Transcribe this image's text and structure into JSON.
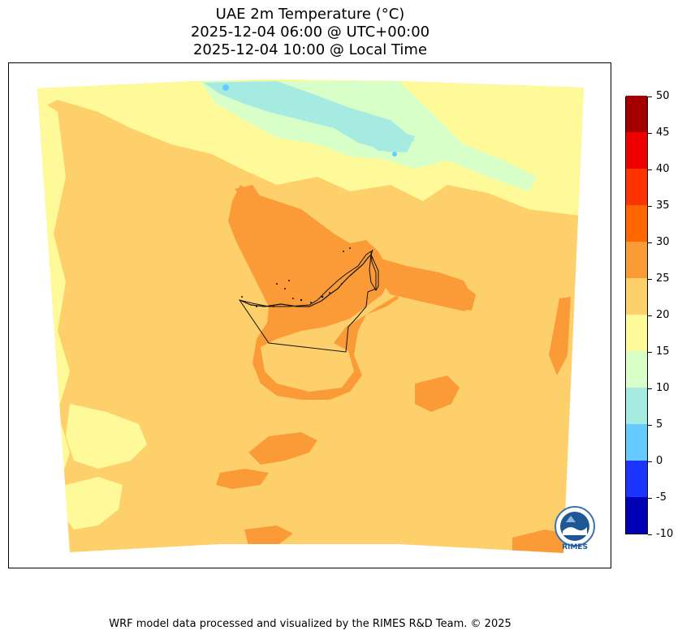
{
  "title": {
    "line1": "UAE 2m Temperature (°C)",
    "line2": "2025-12-04 06:00 @ UTC+00:00",
    "line3": "2025-12-04 10:00 @ Local Time"
  },
  "colorbar": {
    "levels": [
      -10,
      -5,
      0,
      5,
      10,
      15,
      20,
      25,
      30,
      35,
      40,
      45,
      50
    ],
    "labels": [
      "50",
      "45",
      "40",
      "35",
      "30",
      "25",
      "20",
      "15",
      "10",
      "5",
      "0",
      "-5",
      "-10"
    ],
    "colors": [
      "#0000b4",
      "#1c34ff",
      "#66ccff",
      "#a6ebe1",
      "#d9ffc8",
      "#fffa99",
      "#fdd06c",
      "#fb9b37",
      "#ff6600",
      "#ff3300",
      "#ee0000",
      "#a50000"
    ]
  },
  "logo": {
    "text": "RIMES"
  },
  "footer": "WRF model data processed and visualized by the RIMES R&D Team. © 2025"
}
